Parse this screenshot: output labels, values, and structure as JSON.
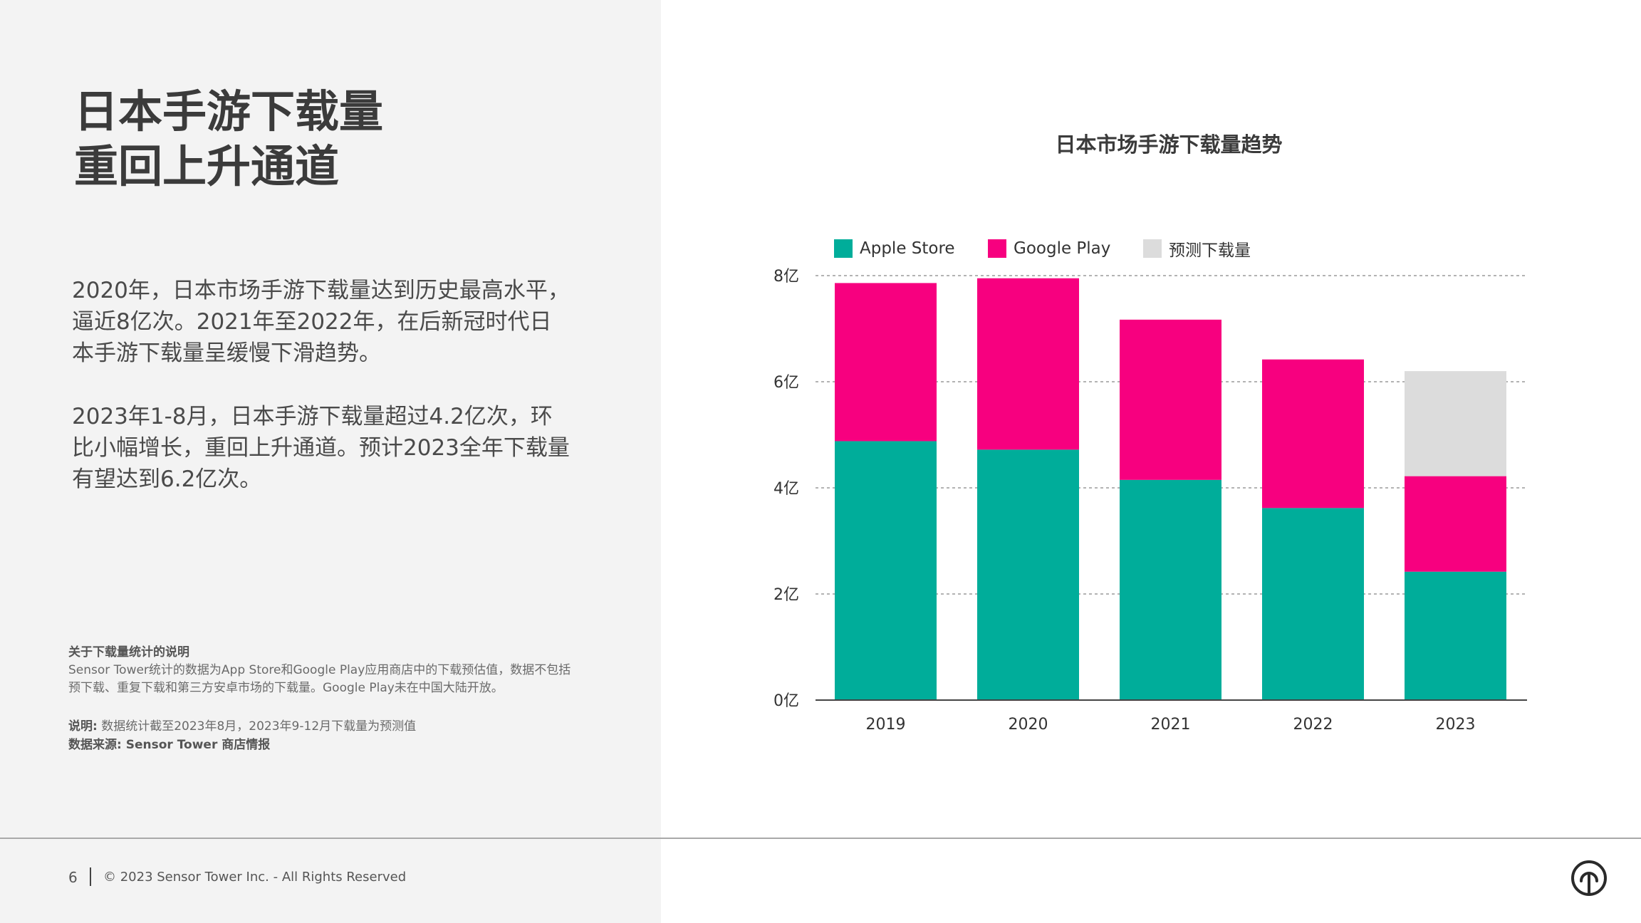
{
  "left": {
    "headline": [
      "日本手游下载量",
      "重回上升通道"
    ],
    "paragraphs": [
      "2020年，日本市场手游下载量达到历史最高水平，逼近8亿次。2021年至2022年，在后新冠时代日本手游下载量呈缓慢下滑趋势。",
      "2023年1-8月，日本手游下载量超过4.2亿次，环比小幅增长，重回上升通道。预计2023全年下载量有望达到6.2亿次。"
    ],
    "note": {
      "title": "关于下载量统计的说明",
      "body": "Sensor Tower统计的数据为App Store和Google Play应用商店中的下载预估值，数据不包括预下载、重复下载和第三方安卓市场的下载量。Google Play未在中国大陆开放。",
      "explain_label": "说明:",
      "explain_text": "数据统计截至2023年8月，2023年9-12月下载量为预测值",
      "source": "数据来源: Sensor Tower 商店情报"
    }
  },
  "footer": {
    "page_number": "6",
    "copyright": "© 2023 Sensor Tower Inc. - All Rights Reserved",
    "logo_icon": "sensor-tower-logo-icon"
  },
  "colors": {
    "apple": "#00ad9a",
    "google": "#f7007f",
    "forecast": "#dcdcdc",
    "left_panel_bg": "#f3f3f3"
  },
  "chart_data": {
    "type": "bar",
    "stacked": true,
    "title": "日本市场手游下载量趋势",
    "categories": [
      "2019",
      "2020",
      "2021",
      "2022",
      "2023"
    ],
    "series": [
      {
        "name": "Apple Store",
        "values": [
          4.88,
          4.72,
          4.15,
          3.62,
          2.42
        ],
        "color": "#00ad9a"
      },
      {
        "name": "Google Play",
        "values": [
          2.98,
          3.23,
          3.02,
          2.8,
          1.8
        ],
        "color": "#f7007f"
      },
      {
        "name": "预测下载量",
        "values": [
          0,
          0,
          0,
          0,
          1.98
        ],
        "color": "#dcdcdc"
      }
    ],
    "ylim": [
      0,
      8
    ],
    "yticks": [
      0,
      2,
      4,
      6,
      8
    ],
    "ytick_labels": [
      "0亿",
      "2亿",
      "4亿",
      "6亿",
      "8亿"
    ],
    "xlabel": "",
    "ylabel": "",
    "grid": true,
    "legend_position": "top"
  }
}
